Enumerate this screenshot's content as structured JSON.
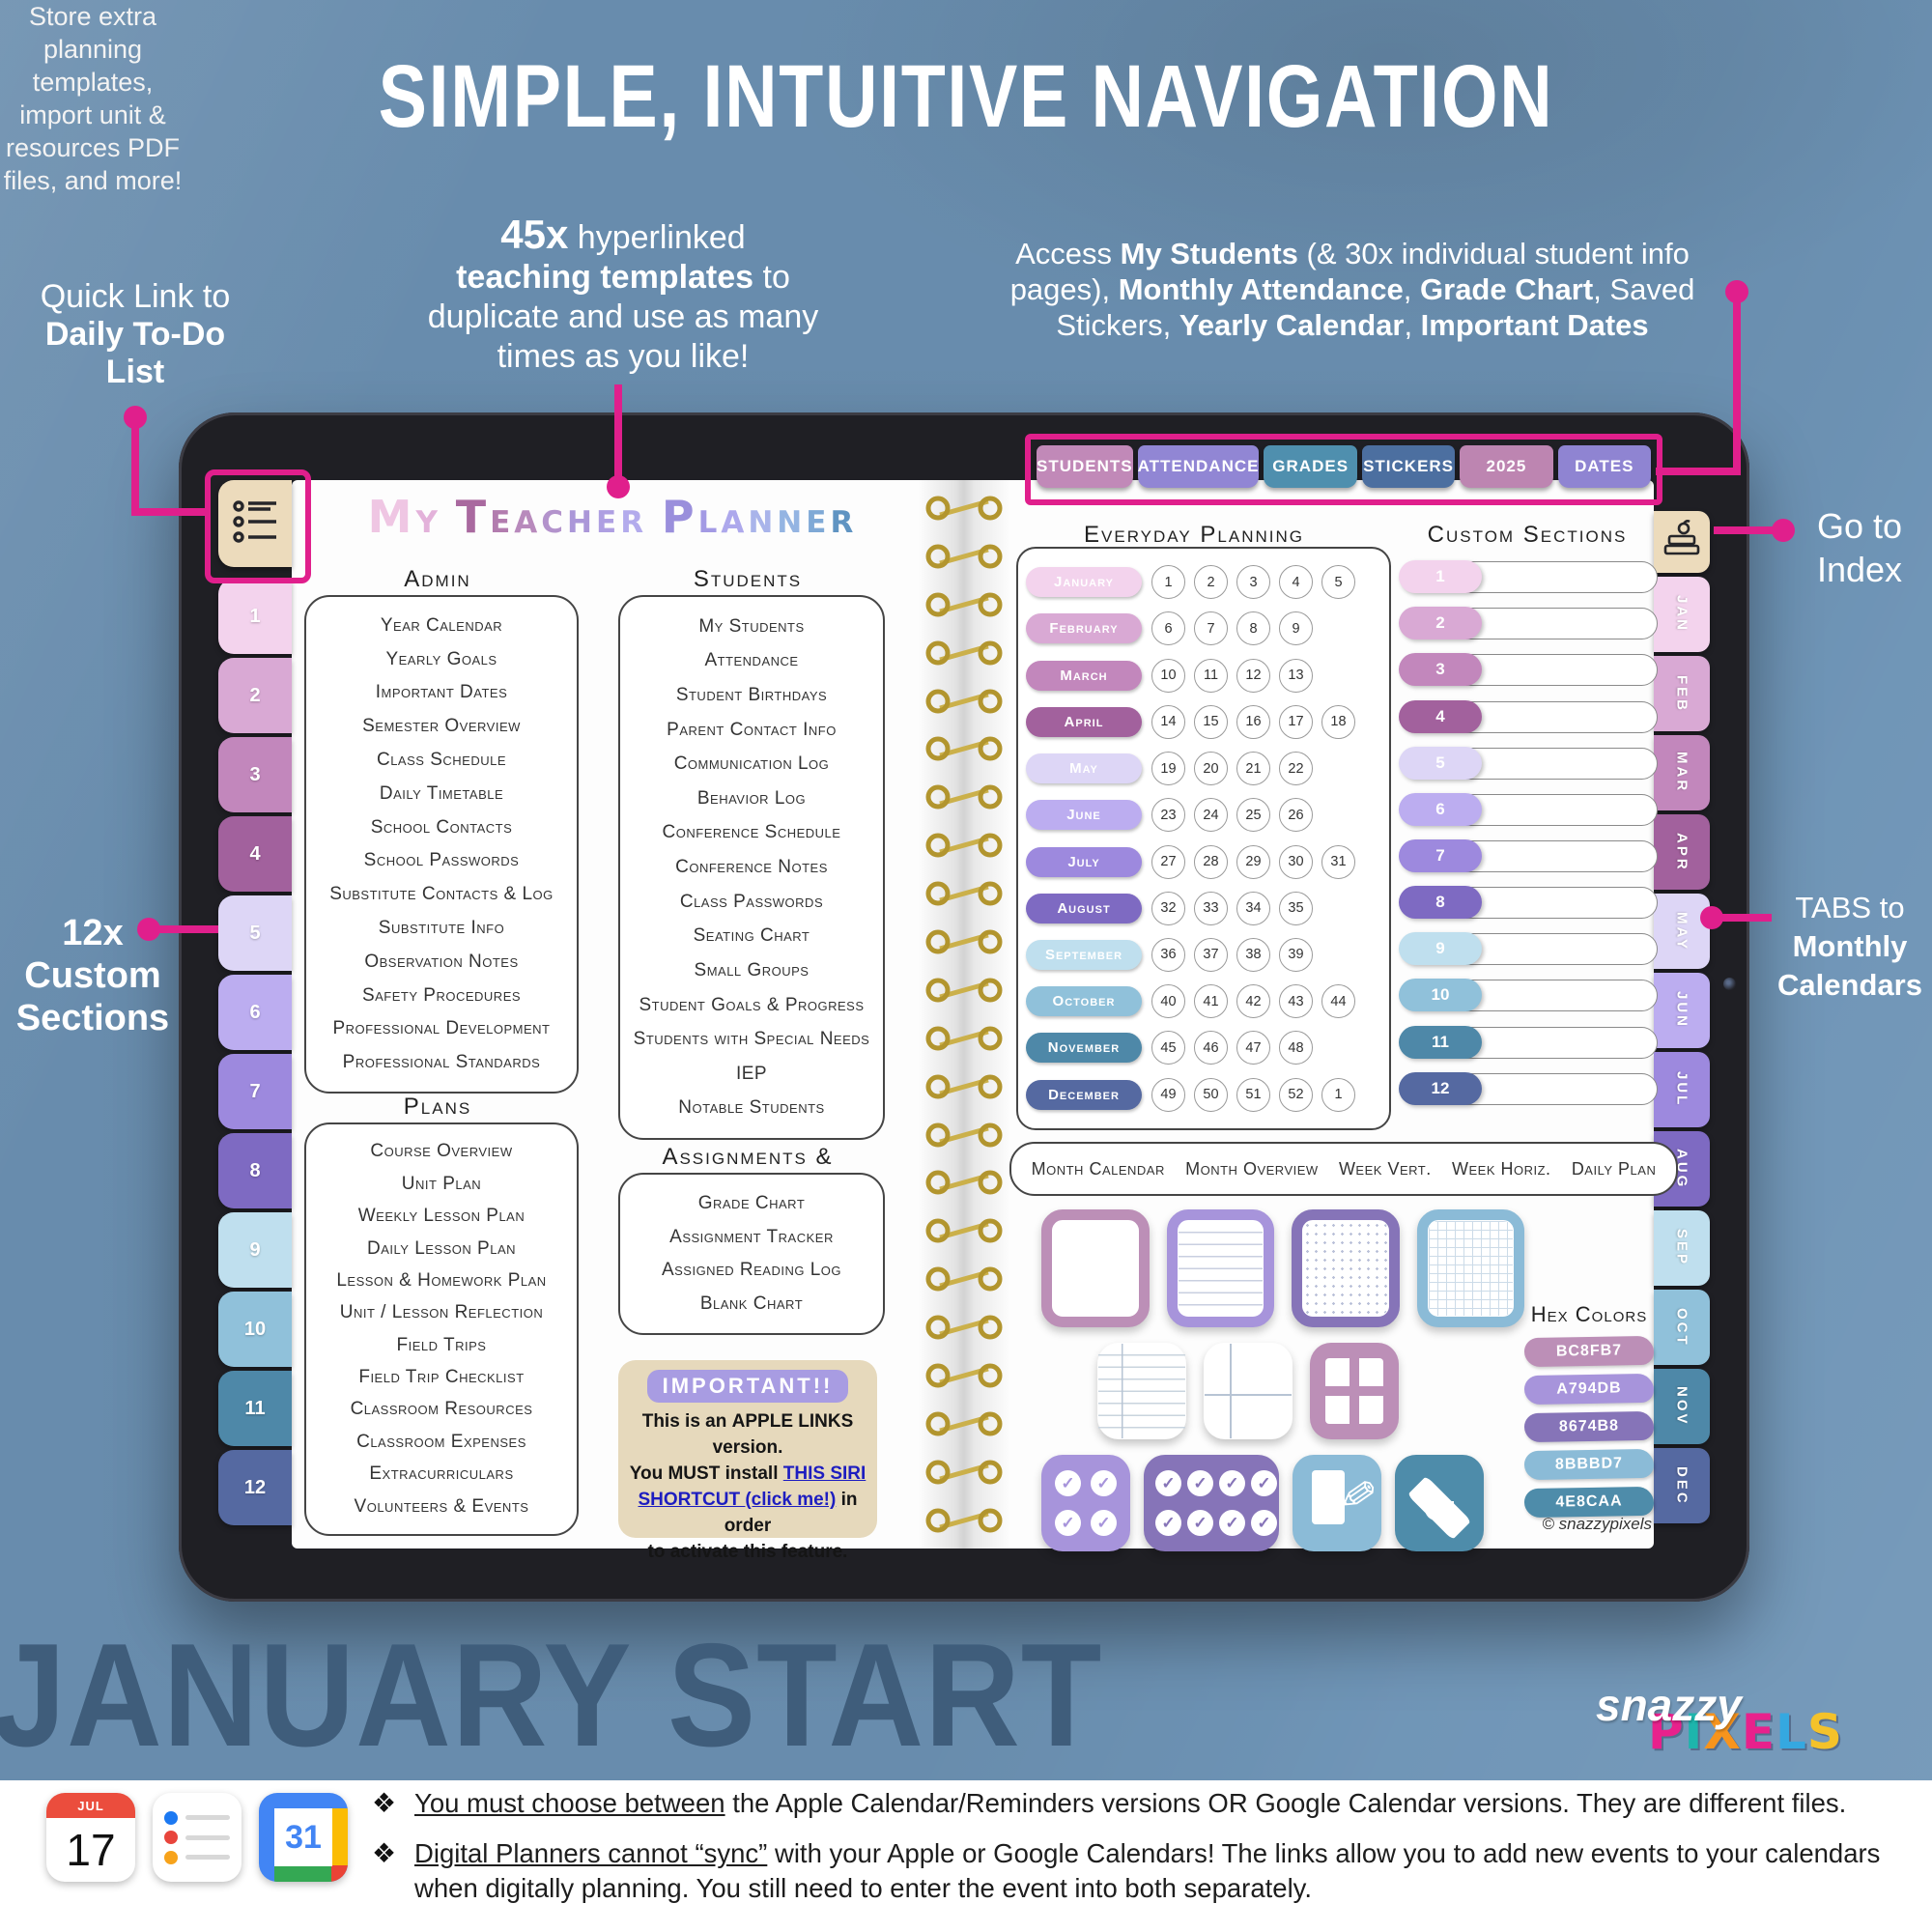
{
  "accent": "#e01f8c",
  "header": {
    "title": "SIMPLE, INTUITIVE NAVIGATION"
  },
  "annotations": {
    "quick_link": {
      "lines": [
        [
          {
            "t": "Quick Link to"
          }
        ],
        [
          {
            "t": "Daily To-Do",
            "fw": "800"
          }
        ],
        [
          {
            "t": "List",
            "fw": "800"
          }
        ]
      ]
    },
    "templates45": {
      "lines": [
        [
          {
            "t": "45x",
            "fw": "800",
            "fs": "42px"
          },
          {
            "t": " hyperlinked"
          }
        ],
        [
          {
            "t": "teaching templates",
            "fw": "800"
          },
          {
            "t": " to"
          }
        ],
        [
          {
            "t": "duplicate and use as many"
          }
        ],
        [
          {
            "t": "times as you like!"
          }
        ]
      ]
    },
    "access": {
      "lines": [
        [
          {
            "t": "Access "
          },
          {
            "t": "My Students",
            "fw": "800"
          },
          {
            "t": " (& 30x individual student info"
          }
        ],
        [
          {
            "t": "pages), "
          },
          {
            "t": "Monthly Attendance",
            "fw": "800"
          },
          {
            "t": ", "
          },
          {
            "t": "Grade Chart",
            "fw": "800"
          },
          {
            "t": ", Saved"
          }
        ],
        [
          {
            "t": "Stickers, "
          },
          {
            "t": "Yearly Calendar",
            "fw": "800"
          },
          {
            "t": ", "
          },
          {
            "t": "Important Dates",
            "fw": "800"
          }
        ]
      ]
    },
    "go_index": {
      "lines": [
        [
          {
            "t": "Go to"
          }
        ],
        [
          {
            "t": "Index"
          }
        ]
      ]
    },
    "custom12": {
      "lines": [
        [
          {
            "t": "12x",
            "fw": "800"
          }
        ],
        [
          {
            "t": "Custom",
            "fw": "800"
          }
        ],
        [
          {
            "t": "Sections",
            "fw": "800"
          }
        ]
      ],
      "body": [
        "Store extra",
        "planning",
        "templates,",
        "import unit &",
        "resources PDF",
        "files, and more!"
      ]
    },
    "tabs_monthly": {
      "lines": [
        [
          {
            "t": "TABS to"
          }
        ],
        [
          {
            "t": "Monthly",
            "fw": "800"
          }
        ],
        [
          {
            "t": "Calendars",
            "fw": "800"
          }
        ]
      ]
    }
  },
  "top_tabs": [
    {
      "label": "STUDENTS",
      "color": "#c189b8"
    },
    {
      "label": "ATTENDANCE",
      "color": "#9186d4"
    },
    {
      "label": "GRADES",
      "color": "#4f8fae"
    },
    {
      "label": "STICKERS",
      "color": "#4c6fa0"
    },
    {
      "label": "2025",
      "color": "#bd85b1"
    },
    {
      "label": "DATES",
      "color": "#8f84d2"
    }
  ],
  "planner": {
    "title_letters": [
      {
        "c": "M",
        "col": "#efc6e3",
        "big": "y"
      },
      {
        "c": "Y",
        "col": "#e3b2da"
      },
      {
        "c": " "
      },
      {
        "c": "T",
        "col": "#a9699f",
        "big": "y"
      },
      {
        "c": "E",
        "col": "#b27cae"
      },
      {
        "c": "A",
        "col": "#b88abc"
      },
      {
        "c": "C",
        "col": "#b393cc"
      },
      {
        "c": "H",
        "col": "#ab97d8"
      },
      {
        "c": "E",
        "col": "#ae9fe2"
      },
      {
        "c": "R",
        "col": "#b3abec"
      },
      {
        "c": " "
      },
      {
        "c": "P",
        "col": "#9a8fdc",
        "big": "y"
      },
      {
        "c": "L",
        "col": "#a39ae4"
      },
      {
        "c": "A",
        "col": "#ada8ec"
      },
      {
        "c": "N",
        "col": "#a9b4ea"
      },
      {
        "c": "N",
        "col": "#94b4e2"
      },
      {
        "c": "E",
        "col": "#7fa9d6"
      },
      {
        "c": "R",
        "col": "#6094c2"
      }
    ],
    "admin": {
      "heading": "Admin",
      "items": [
        "Year Calendar",
        "Yearly Goals",
        "Important Dates",
        "Semester Overview",
        "Class Schedule",
        "Daily Timetable",
        "School Contacts",
        "School Passwords",
        "Substitute Contacts & Log",
        "Substitute Info",
        "Observation Notes",
        "Safety Procedures",
        "Professional Development",
        "Professional Standards"
      ]
    },
    "students": {
      "heading": "Students",
      "items": [
        "My Students",
        "Attendance",
        "Student Birthdays",
        "Parent Contact Info",
        "Communication Log",
        "Behavior Log",
        "Conference Schedule",
        "Conference Notes",
        "Class Passwords",
        "Seating Chart",
        "Small Groups",
        "Student Goals & Progress",
        "Students with Special Needs",
        "IEP",
        "Notable Students"
      ]
    },
    "plans": {
      "heading": "Plans",
      "items": [
        "Course Overview",
        "Unit Plan",
        "Weekly Lesson Plan",
        "Daily Lesson Plan",
        "Lesson & Homework Plan",
        "Unit / Lesson Reflection",
        "Field Trips",
        "Field Trip Checklist",
        "Classroom Resources",
        "Classroom Expenses",
        "Extracurriculars",
        "Volunteers & Events"
      ]
    },
    "assignments": {
      "heading": "Assignments & Grades",
      "items": [
        "Grade Chart",
        "Assignment Tracker",
        "Assigned Reading Log",
        "Blank Chart"
      ]
    },
    "important": {
      "badge": "IMPORTANT!!",
      "lines": [
        [
          {
            "t": "This is an "
          },
          {
            "t": "APPLE LINKS",
            "fw": "800"
          },
          {
            "t": " version."
          }
        ],
        [
          {
            "t": "You "
          },
          {
            "t": "MUST",
            "fw": "800"
          },
          {
            "t": " install "
          },
          {
            "t": "THIS SIRI",
            "fw": "800",
            "color": "#1d1dc0",
            "td": "underline",
            "ia": "true"
          }
        ],
        [
          {
            "t": "SHORTCUT (click me!)",
            "fw": "800",
            "color": "#1d1dc0",
            "td": "underline",
            "ia": "true"
          },
          {
            "t": " in order"
          }
        ],
        [
          {
            "t": "to activate this feature."
          }
        ]
      ]
    },
    "everyday": {
      "heading": "Everyday Planning",
      "months": [
        {
          "name": "January",
          "color": "#f3d3ed",
          "weeks": [
            "1",
            "2",
            "3",
            "4",
            "5"
          ]
        },
        {
          "name": "February",
          "color": "#d9a9d4",
          "weeks": [
            "6",
            "7",
            "8",
            "9"
          ]
        },
        {
          "name": "March",
          "color": "#c287bc",
          "weeks": [
            "10",
            "11",
            "12",
            "13"
          ]
        },
        {
          "name": "April",
          "color": "#a2619d",
          "weeks": [
            "14",
            "15",
            "16",
            "17",
            "18"
          ]
        },
        {
          "name": "May",
          "color": "#ddd6f6",
          "weeks": [
            "19",
            "20",
            "21",
            "22"
          ]
        },
        {
          "name": "June",
          "color": "#bcadf0",
          "weeks": [
            "23",
            "24",
            "25",
            "26"
          ]
        },
        {
          "name": "July",
          "color": "#9d89de",
          "weeks": [
            "27",
            "28",
            "29",
            "30",
            "31"
          ]
        },
        {
          "name": "August",
          "color": "#7e6ac2",
          "weeks": [
            "32",
            "33",
            "34",
            "35"
          ]
        },
        {
          "name": "September",
          "color": "#bfdfee",
          "weeks": [
            "36",
            "37",
            "38",
            "39"
          ]
        },
        {
          "name": "October",
          "color": "#90c1da",
          "weeks": [
            "40",
            "41",
            "42",
            "43",
            "44"
          ]
        },
        {
          "name": "November",
          "color": "#4e88a8",
          "weeks": [
            "45",
            "46",
            "47",
            "48"
          ]
        },
        {
          "name": "December",
          "color": "#5569a1",
          "weeks": [
            "49",
            "50",
            "51",
            "52",
            "1"
          ]
        }
      ]
    },
    "custom": {
      "heading": "Custom Sections",
      "rows": [
        {
          "num": "1",
          "color": "#f3d3ed"
        },
        {
          "num": "2",
          "color": "#d9a9d4"
        },
        {
          "num": "3",
          "color": "#c287bc"
        },
        {
          "num": "4",
          "color": "#a2619d"
        },
        {
          "num": "5",
          "color": "#ddd6f6"
        },
        {
          "num": "6",
          "color": "#bcadf0"
        },
        {
          "num": "7",
          "color": "#9d89de"
        },
        {
          "num": "8",
          "color": "#7e6ac2"
        },
        {
          "num": "9",
          "color": "#bfdfee"
        },
        {
          "num": "10",
          "color": "#90c1da"
        },
        {
          "num": "11",
          "color": "#4e88a8"
        },
        {
          "num": "12",
          "color": "#5569a1"
        }
      ]
    },
    "views": [
      "Month Calendar",
      "Month Overview",
      "Week Vert.",
      "Week Horiz.",
      "Daily Plan"
    ],
    "stickers": {
      "row1": [
        {
          "kind": "blank",
          "frame": "y",
          "border": "#bc8fb7"
        },
        {
          "kind": "lines",
          "frame": "y",
          "border": "#a794db"
        },
        {
          "kind": "dots",
          "frame": "y",
          "border": "#8674b8"
        },
        {
          "kind": "grid",
          "frame": "y",
          "border": "#8bbbd7"
        }
      ],
      "row2": [
        {
          "kind": "lines-split",
          "frame": "y",
          "border": "#4e8caa"
        },
        {
          "kind": "cross",
          "frame": "y",
          "border": "#3d5e92"
        },
        {
          "kind": "window",
          "color": "#bc8fb7"
        }
      ],
      "row3": [
        {
          "kind": "checks",
          "color": "#a794db",
          "checks": [
            "✓",
            "✓",
            "✓",
            "✓"
          ]
        },
        {
          "kind": "checks",
          "color": "#8674b8",
          "wide": "y",
          "checks": [
            "✓",
            "✓",
            "✓",
            "✓",
            "✓",
            "✓",
            "✓",
            "✓"
          ]
        },
        {
          "kind": "memo",
          "color": "#8bbbd7"
        },
        {
          "kind": "gradcap",
          "color": "#4e8caa"
        }
      ]
    },
    "hex": {
      "heading": "Hex Colors",
      "swatches": [
        {
          "label": "BC8FB7",
          "color": "#bc8fb7"
        },
        {
          "label": "A794DB",
          "color": "#a794db"
        },
        {
          "label": "8674B8",
          "color": "#8674b8"
        },
        {
          "label": "8BBBD7",
          "color": "#8bbbd7"
        },
        {
          "label": "4E8CAA",
          "color": "#4e8caa"
        }
      ]
    },
    "copyright": "© snazzypixels",
    "left_tabs": [
      {
        "num": "1",
        "color": "#f3d3ed"
      },
      {
        "num": "2",
        "color": "#d9a9d4"
      },
      {
        "num": "3",
        "color": "#c287bc"
      },
      {
        "num": "4",
        "color": "#a2619d"
      },
      {
        "num": "5",
        "color": "#ddd6f6"
      },
      {
        "num": "6",
        "color": "#bcadf0"
      },
      {
        "num": "7",
        "color": "#9d89de"
      },
      {
        "num": "8",
        "color": "#7e6ac2"
      },
      {
        "num": "9",
        "color": "#bfdfee"
      },
      {
        "num": "10",
        "color": "#90c1da"
      },
      {
        "num": "11",
        "color": "#4e88a8"
      },
      {
        "num": "12",
        "color": "#5569a1"
      }
    ],
    "right_tabs": [
      {
        "label": "JAN",
        "color": "#f3d3ed"
      },
      {
        "label": "FEB",
        "color": "#d9a9d4"
      },
      {
        "label": "MAR",
        "color": "#c287bc"
      },
      {
        "label": "APR",
        "color": "#a2619d"
      },
      {
        "label": "MAY",
        "color": "#ddd6f6"
      },
      {
        "label": "JUN",
        "color": "#bcadf0"
      },
      {
        "label": "JUL",
        "color": "#9d89de"
      },
      {
        "label": "AUG",
        "color": "#7e6ac2"
      },
      {
        "label": "SEP",
        "color": "#bfdfee"
      },
      {
        "label": "OCT",
        "color": "#90c1da"
      },
      {
        "label": "NOV",
        "color": "#4e88a8"
      },
      {
        "label": "DEC",
        "color": "#5569a1"
      }
    ]
  },
  "bottom": {
    "big_text": "JANUARY START",
    "logo": {
      "script": "snazzy",
      "letters": [
        {
          "c": "P",
          "col": "#e8218c"
        },
        {
          "c": "I",
          "col": "#1db5ac"
        },
        {
          "c": "X",
          "col": "#f7941d"
        },
        {
          "c": "E",
          "col": "#e8218c"
        },
        {
          "c": "L",
          "col": "#35a8e0"
        },
        {
          "c": "S",
          "col": "#f4c22a"
        }
      ]
    }
  },
  "footer": {
    "icons": {
      "apple_calendar_month": "JUL",
      "apple_calendar_day": "17",
      "google_calendar_day": "31"
    },
    "bullets": [
      {
        "icon": "❖",
        "segs": [
          {
            "t": "You must choose between",
            "td": "underline"
          },
          {
            "t": " the Apple Calendar/Reminders versions OR Google Calendar versions. They are different files."
          }
        ]
      },
      {
        "icon": "❖",
        "segs": [
          {
            "t": "Digital Planners cannot “sync”",
            "td": "underline"
          },
          {
            "t": " with your Apple or Google Calendars! The links allow you to add new events to your calendars when digitally planning.  You still need to enter the event into both separately."
          }
        ]
      }
    ]
  }
}
